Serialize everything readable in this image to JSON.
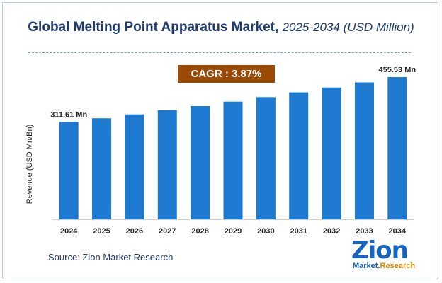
{
  "title": {
    "main": "Global Melting Point Apparatus Market,",
    "sub": "2025-2034 (USD Million)"
  },
  "cagr_label": "CAGR : 3.87%",
  "source_label": "Source: Zion Market Research",
  "logo": {
    "word": "Zion",
    "market": "Market.",
    "research": "Research"
  },
  "colors": {
    "bar": "#1e7ad0",
    "cagr_bg": "#9b4a06",
    "title": "#1f3a6e"
  },
  "chart_data": {
    "type": "bar",
    "title": "Global Melting Point Apparatus Market, 2025-2034 (USD Million)",
    "xlabel": "",
    "ylabel": "Revenue (USD Mn/Bn)",
    "categories": [
      "2024",
      "2025",
      "2026",
      "2027",
      "2028",
      "2029",
      "2030",
      "2031",
      "2032",
      "2033",
      "2034"
    ],
    "values": [
      311.61,
      323.7,
      336.2,
      349.2,
      362.7,
      376.8,
      391.4,
      406.5,
      422.2,
      438.6,
      455.53
    ],
    "annotations": [
      {
        "index": 0,
        "text": "311.61 Mn"
      },
      {
        "index": 10,
        "text": "455.53 Mn"
      }
    ],
    "ylim": [
      0,
      455.53
    ],
    "grid": false
  }
}
